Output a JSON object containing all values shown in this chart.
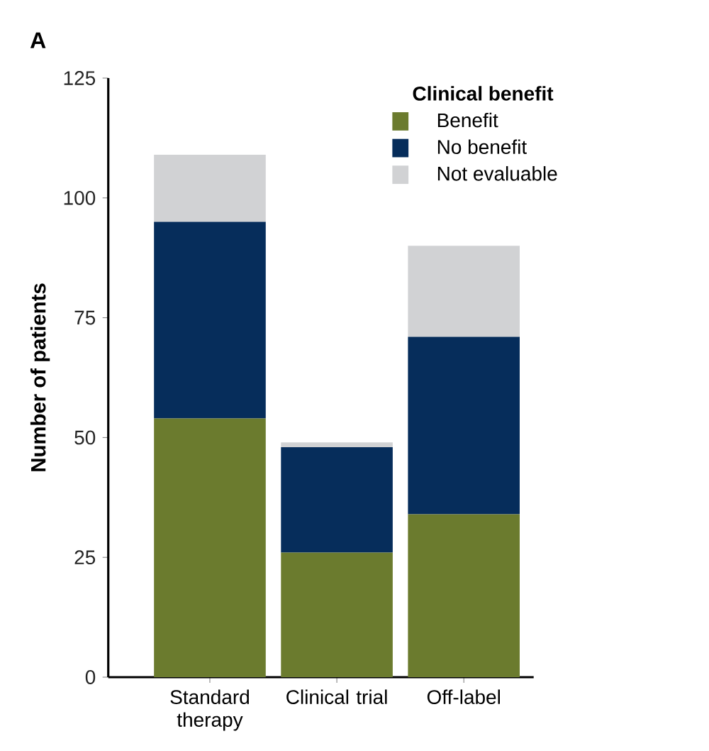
{
  "chart_data": {
    "type": "bar",
    "title": "A",
    "ylabel": "Number of patients",
    "legend_title": "Clinical benefit",
    "categories": [
      "Standard therapy",
      "Clinical trial",
      "Off-label"
    ],
    "stacked": true,
    "legend": "top right",
    "grid": false,
    "ylim": [
      0,
      125
    ],
    "yticks": [
      0,
      25,
      50,
      75,
      100,
      125
    ],
    "series": [
      {
        "name": "Benefit",
        "color": "#6b7b2e",
        "values": [
          54,
          26,
          34
        ]
      },
      {
        "name": "No benefit",
        "color": "#062d5b",
        "values": [
          41,
          22,
          37
        ]
      },
      {
        "name": "Not evaluable",
        "color": "#d1d2d4",
        "values": [
          14,
          1,
          19
        ]
      }
    ]
  }
}
